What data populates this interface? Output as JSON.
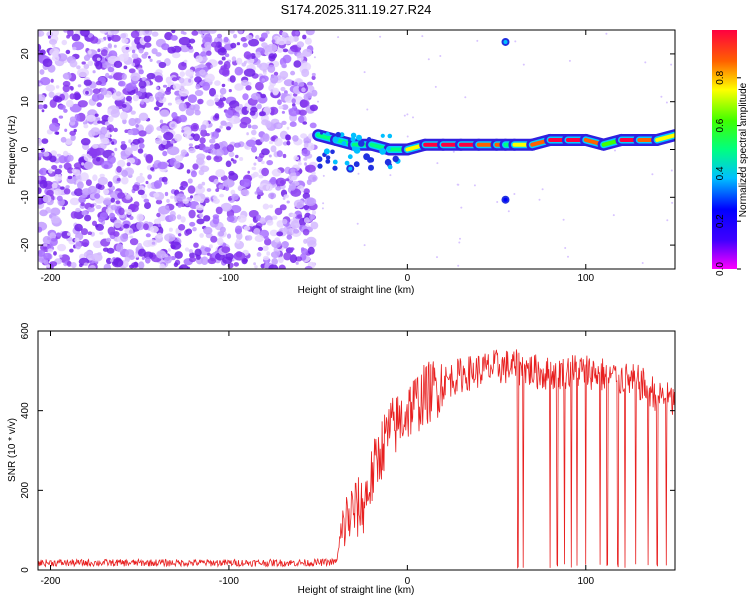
{
  "title": "S174.2025.311.19.27.R24",
  "colors": {
    "snr_line": "#e82020",
    "scatter_purple": "#8a3cf0",
    "band_blue": "#2030e0",
    "band_green": "#30e060",
    "band_red": "#e02020"
  },
  "chart_data": [
    {
      "type": "heatmap",
      "name": "spectrogram",
      "xlabel": "Height of straight line (km)",
      "ylabel": "Frequency (Hz)",
      "xlim": [
        -207,
        150
      ],
      "ylim": [
        -25,
        25
      ],
      "xticks": [
        -200,
        -100,
        0,
        100
      ],
      "xtick_labels": [
        "-200",
        "-100",
        "0",
        "100"
      ],
      "yticks": [
        -20,
        -10,
        0,
        10,
        20
      ],
      "ytick_labels": [
        "-20",
        "-10",
        "0",
        "10",
        "20"
      ],
      "noise_region_x": [
        -207,
        -52
      ],
      "band": {
        "x": [
          -50,
          -40,
          -30,
          -20,
          -10,
          0,
          10,
          20,
          30,
          40,
          50,
          55,
          60,
          70,
          80,
          90,
          100,
          110,
          120,
          130,
          140,
          150
        ],
        "freq": [
          3,
          2,
          1,
          1,
          0,
          0,
          1,
          1,
          1,
          1,
          1,
          1,
          1,
          1,
          2,
          2,
          2,
          1,
          2,
          2,
          2,
          3
        ],
        "amplitude": [
          0.4,
          0.45,
          0.5,
          0.45,
          0.5,
          0.75,
          0.95,
          0.9,
          0.9,
          0.85,
          0.8,
          0.5,
          0.75,
          0.85,
          0.95,
          0.9,
          0.85,
          0.6,
          0.9,
          0.85,
          0.7,
          0.6
        ]
      },
      "isolated_points": [
        {
          "x": 55,
          "freq": 22.5,
          "amplitude": 0.35
        },
        {
          "x": 55,
          "freq": -10.5,
          "amplitude": 0.2
        },
        {
          "x": -32,
          "freq": -4,
          "amplitude": 0.3
        }
      ],
      "colorbar": {
        "label": "Normalized spectral amplitude",
        "range": [
          0,
          1
        ],
        "ticks": [
          0.0,
          0.2,
          0.4,
          0.6,
          0.8
        ],
        "tick_labels": [
          "0.0",
          "0.2",
          "0.4",
          "0.6",
          "0.8"
        ]
      }
    },
    {
      "type": "line",
      "name": "snr",
      "xlabel": "Height of straight line (km)",
      "ylabel": "SNR (10 * v/v)",
      "xlim": [
        -207,
        150
      ],
      "ylim": [
        0,
        600
      ],
      "xticks": [
        -200,
        -100,
        0,
        100
      ],
      "xtick_labels": [
        "-200",
        "-100",
        "0",
        "100"
      ],
      "yticks": [
        0,
        200,
        400,
        600
      ],
      "ytick_labels": [
        "0",
        "200",
        "400",
        "600"
      ],
      "series": [
        {
          "name": "SNR",
          "x": [
            -207,
            -150,
            -100,
            -55,
            -40,
            -35,
            -30,
            -25,
            -20,
            -15,
            -10,
            -5,
            0,
            5,
            10,
            20,
            30,
            40,
            50,
            60,
            70,
            80,
            90,
            100,
            110,
            120,
            130,
            140,
            150
          ],
          "values": [
            18,
            18,
            18,
            18,
            20,
            120,
            150,
            160,
            230,
            300,
            350,
            370,
            400,
            420,
            440,
            470,
            490,
            500,
            510,
            510,
            500,
            490,
            500,
            500,
            490,
            480,
            470,
            440,
            420
          ],
          "dropouts_x": [
            62,
            65,
            80,
            84,
            88,
            92,
            95,
            100,
            108,
            112,
            118,
            122,
            128,
            135,
            140,
            145
          ]
        }
      ]
    }
  ]
}
